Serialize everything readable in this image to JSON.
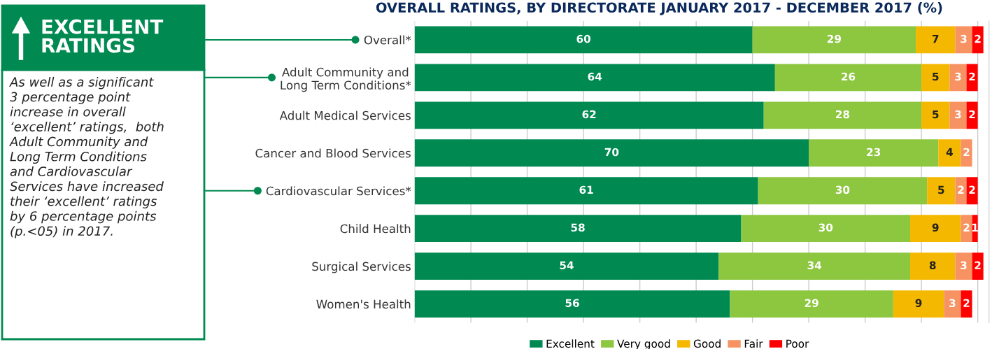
{
  "chart_data": {
    "type": "bar",
    "orientation": "horizontal",
    "stacked": true,
    "title": "OVERALL RATINGS, BY DIRECTORATE JANUARY 2017 - DECEMBER 2017 (%)",
    "categories": [
      "Overall*",
      "Adult Community and\nLong Term Conditions*",
      "Adult Medical Services",
      "Cancer and Blood Services",
      "Cardiovascular Services*",
      "Child Health",
      "Surgical Services",
      "Women's Health"
    ],
    "series": [
      {
        "name": "Excellent",
        "color": "#008a52",
        "values": [
          60,
          64,
          62,
          70,
          61,
          58,
          54,
          56
        ]
      },
      {
        "name": "Very good",
        "color": "#8dc63f",
        "values": [
          29,
          26,
          28,
          23,
          30,
          30,
          34,
          29
        ]
      },
      {
        "name": "Good",
        "color": "#f5b800",
        "values": [
          7,
          5,
          5,
          4,
          5,
          9,
          8,
          9
        ]
      },
      {
        "name": "Fair",
        "color": "#f79263",
        "values": [
          3,
          3,
          3,
          2,
          2,
          2,
          3,
          3
        ]
      },
      {
        "name": "Poor",
        "color": "#ff0000",
        "values": [
          2,
          2,
          2,
          null,
          2,
          1,
          2,
          2
        ]
      }
    ],
    "xlim": [
      0,
      102
    ],
    "xticks": [
      {
        "value": 0,
        "label": null
      },
      {
        "value": 10,
        "label": null
      },
      {
        "value": 20,
        "label": null
      },
      {
        "value": 30,
        "label": null
      },
      {
        "value": 40,
        "label": null
      },
      {
        "value": 50,
        "label": null
      },
      {
        "value": 60,
        "label": null
      },
      {
        "value": 70,
        "label": null
      },
      {
        "value": 80,
        "label": null
      },
      {
        "value": 90,
        "label": null
      },
      {
        "value": 100,
        "label": null
      }
    ],
    "tick_labels": "y",
    "grid": "x",
    "legend": "bottom",
    "data_labels": true,
    "annotations": [
      "EXCELLENT\nRATINGS",
      "As well as a significant\n3 percentage point\nincrease in overall\n‘excellent’ ratings,  both\nAdult Community and\nLong Term Conditions\nand Cardiovascular\nServices have increased\ntheir ‘excellent’ ratings\nby 6 percentage points\n(p.<05) in 2017."
    ]
  }
}
